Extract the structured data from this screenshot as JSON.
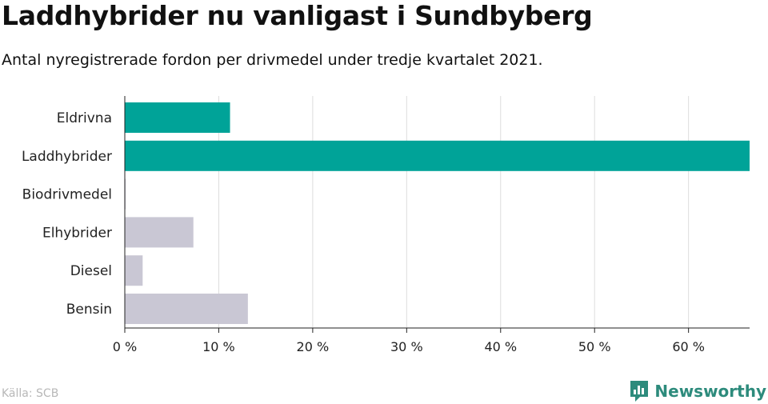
{
  "header": {
    "title": "Laddhybrider nu vanligast i Sundbyberg",
    "subtitle": "Antal nyregistrerade fordon per drivmedel under tredje kvartalet 2021."
  },
  "footer": {
    "source": "Källa: SCB",
    "brand": "Newsworthy",
    "brand_icon": "newsworthy-logo-icon"
  },
  "colors": {
    "highlight": "#00a398",
    "muted": "#c9c7d4",
    "grid": "#dddddd",
    "brand": "#2d8b7c"
  },
  "chart_data": {
    "type": "bar",
    "orientation": "horizontal",
    "categories": [
      "Eldrivna",
      "Laddhybrider",
      "Biodrivmedel",
      "Elhybrider",
      "Diesel",
      "Bensin"
    ],
    "values": [
      11.2,
      66.5,
      0,
      7.3,
      1.9,
      13.1
    ],
    "highlighted": [
      true,
      true,
      false,
      false,
      false,
      false
    ],
    "xlim": [
      0,
      66.5
    ],
    "xticks": [
      0,
      10,
      20,
      30,
      40,
      50,
      60
    ],
    "xtick_labels": [
      "0 %",
      "10 %",
      "20 %",
      "30 %",
      "40 %",
      "50 %",
      "60 %"
    ],
    "grid": true,
    "title": "Laddhybrider nu vanligast i Sundbyberg",
    "xlabel": "",
    "ylabel": ""
  }
}
